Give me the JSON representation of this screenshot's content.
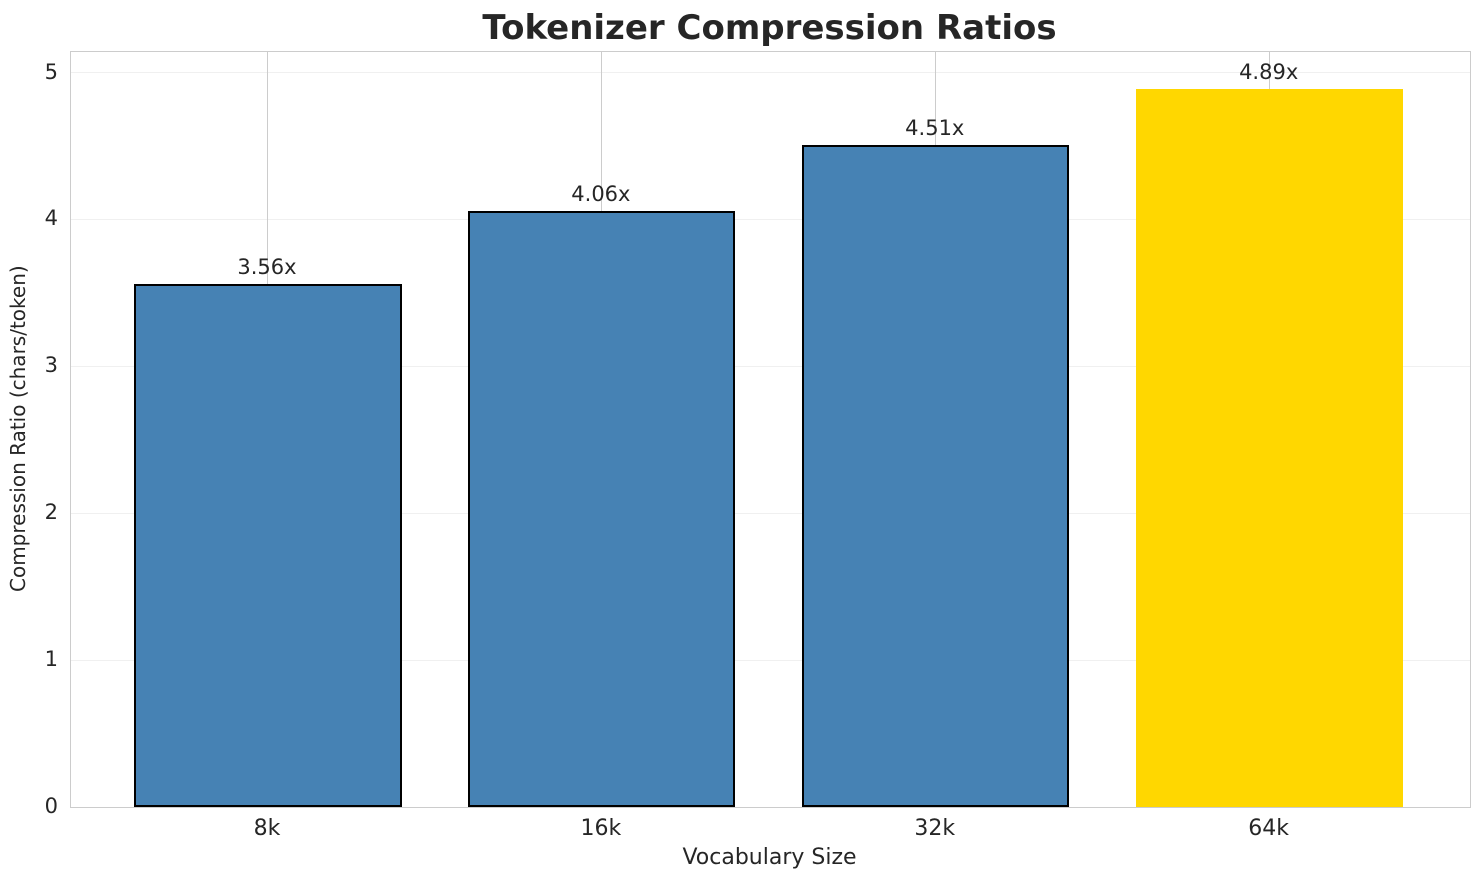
{
  "title": "Tokenizer Compression Ratios",
  "chart_data": {
    "type": "bar",
    "title": "Tokenizer Compression Ratios",
    "xlabel": "Vocabulary Size",
    "ylabel": "Compression Ratio (chars/token)",
    "categories": [
      "8k",
      "16k",
      "32k",
      "64k"
    ],
    "values": [
      3.56,
      4.06,
      4.51,
      4.89
    ],
    "bar_labels": [
      "3.56x",
      "4.06x",
      "4.51x",
      "4.89x"
    ],
    "yticks": [
      0,
      1,
      2,
      3,
      4,
      5
    ],
    "ylim": [
      0,
      5.14
    ],
    "xlim": [
      -0.59,
      3.6
    ],
    "bar_width_units": 0.8,
    "bar_colors": [
      "#4682b4",
      "#4682b4",
      "#4682b4",
      "#ffd700"
    ],
    "bar_edge_colors": [
      "#000000",
      "#000000",
      "#000000",
      "none"
    ],
    "bar_edge_width": 2,
    "grid": "both",
    "grid_color_horizontal": "#f0f0f0",
    "grid_color_vertical": "#cccccc",
    "spine_color": "#cccccc",
    "text_color": "#262626",
    "highlight_index": 3,
    "legend": null
  }
}
